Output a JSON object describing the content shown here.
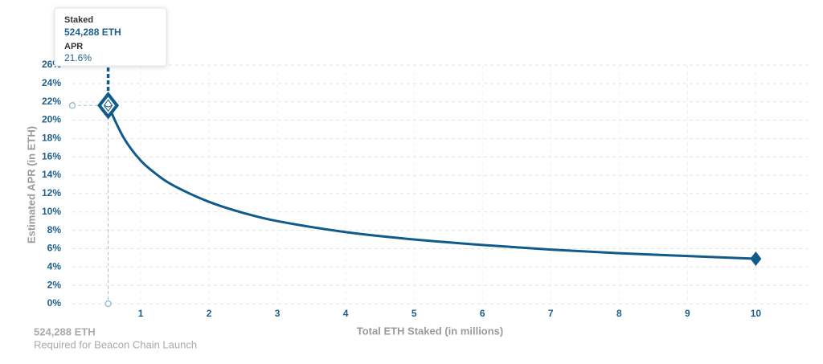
{
  "chart_data": {
    "type": "line",
    "ylabel": "Estimated APR (in ETH)",
    "xlabel": "Total ETH Staked  (in millions)",
    "series": [
      {
        "color": "#115b8c",
        "x": [
          0.524288,
          0.75,
          1,
          1.25,
          1.5,
          2,
          2.5,
          3,
          4,
          5,
          6,
          7,
          8,
          9,
          10
        ],
        "values": [
          21.6,
          18.1,
          15.6,
          14.0,
          12.8,
          11.1,
          9.9,
          9.0,
          7.8,
          7.0,
          6.4,
          5.9,
          5.5,
          5.2,
          4.9
        ]
      }
    ],
    "xlim": [
      0,
      10.76
    ],
    "ylim": [
      0,
      26
    ],
    "xticks": [
      1,
      2,
      3,
      4,
      5,
      6,
      7,
      8,
      9,
      10
    ],
    "yticks": [
      {
        "value": 0,
        "label": "0%"
      },
      {
        "value": 2,
        "label": "2%"
      },
      {
        "value": 4,
        "label": "4%"
      },
      {
        "value": 6,
        "label": "6%"
      },
      {
        "value": 8,
        "label": "8%"
      },
      {
        "value": 10,
        "label": "10%"
      },
      {
        "value": 12,
        "label": "12%"
      },
      {
        "value": 14,
        "label": "14%"
      },
      {
        "value": 16,
        "label": "16%"
      },
      {
        "value": 18,
        "label": "18%"
      },
      {
        "value": 20,
        "label": "20%"
      },
      {
        "value": 22,
        "label": "22%"
      },
      {
        "value": 24,
        "label": "24%"
      },
      {
        "value": 26,
        "label": "26%"
      }
    ],
    "grid": true,
    "tooltip": {
      "staked_title": "Staked",
      "staked": "524,288 ETH",
      "apr_title": "APR",
      "apr": "21.6%"
    },
    "annotation": {
      "value": "524,288 ETH",
      "text": "Required for Beacon Chain Launch"
    }
  }
}
